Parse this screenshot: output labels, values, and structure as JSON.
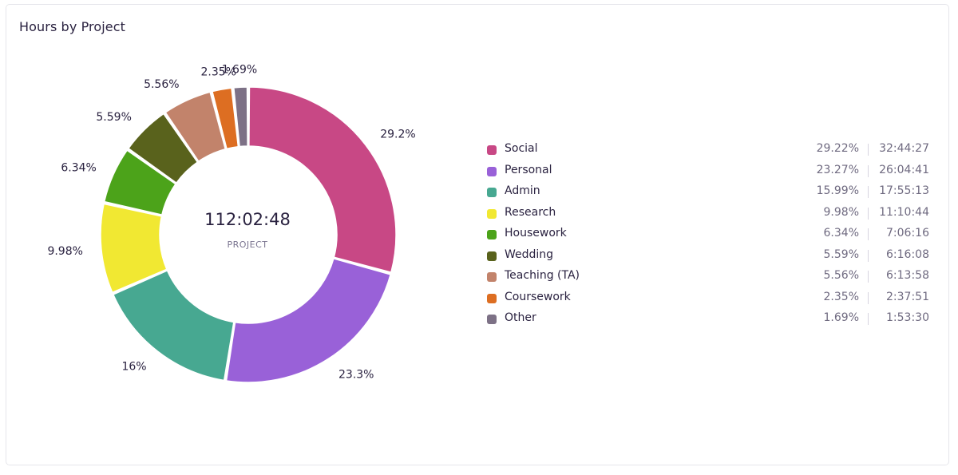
{
  "card": {
    "title": "Hours by Project"
  },
  "center": {
    "total": "112:02:48",
    "label": "PROJECT"
  },
  "chart_data": {
    "type": "pie",
    "title": "Hours by Project",
    "slices": [
      {
        "name": "Social",
        "value": 29.22,
        "label": "29.2%",
        "color": "#c84885"
      },
      {
        "name": "Personal",
        "value": 23.27,
        "label": "23.3%",
        "color": "#9961d8"
      },
      {
        "name": "Admin",
        "value": 15.99,
        "label": "16%",
        "color": "#47a891"
      },
      {
        "name": "Research",
        "value": 9.98,
        "label": "9.98%",
        "color": "#f1e832"
      },
      {
        "name": "Housework",
        "value": 6.34,
        "label": "6.34%",
        "color": "#4ca31a"
      },
      {
        "name": "Wedding",
        "value": 5.59,
        "label": "5.59%",
        "color": "#59621c"
      },
      {
        "name": "Teaching (TA)",
        "value": 5.56,
        "label": "5.56%",
        "color": "#c2836b"
      },
      {
        "name": "Coursework",
        "value": 2.35,
        "label": "2.35%",
        "color": "#dd6e22"
      },
      {
        "name": "Other",
        "value": 1.69,
        "label": "1.69%",
        "color": "#7d7186"
      }
    ],
    "legend_position": "right"
  },
  "legend": [
    {
      "name": "Social",
      "percent": "29.22%",
      "time": "32:44:27",
      "color": "#c84885"
    },
    {
      "name": "Personal",
      "percent": "23.27%",
      "time": "26:04:41",
      "color": "#9961d8"
    },
    {
      "name": "Admin",
      "percent": "15.99%",
      "time": "17:55:13",
      "color": "#47a891"
    },
    {
      "name": "Research",
      "percent": "9.98%",
      "time": "11:10:44",
      "color": "#f1e832"
    },
    {
      "name": "Housework",
      "percent": "6.34%",
      "time": "7:06:16",
      "color": "#4ca31a"
    },
    {
      "name": "Wedding",
      "percent": "5.59%",
      "time": "6:16:08",
      "color": "#59621c"
    },
    {
      "name": "Teaching (TA)",
      "percent": "5.56%",
      "time": "6:13:58",
      "color": "#c2836b"
    },
    {
      "name": "Coursework",
      "percent": "2.35%",
      "time": "2:37:51",
      "color": "#dd6e22"
    },
    {
      "name": "Other",
      "percent": "1.69%",
      "time": "1:53:30",
      "color": "#7d7186"
    }
  ]
}
